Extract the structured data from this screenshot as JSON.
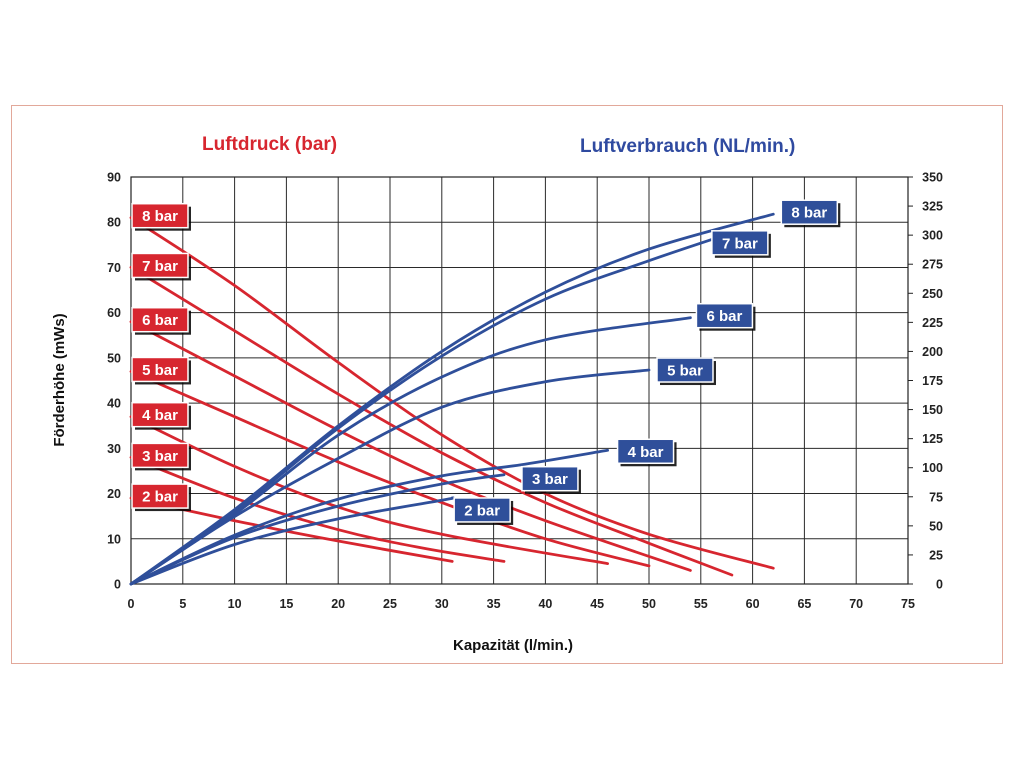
{
  "chart_data": {
    "type": "line",
    "title_left": "Luftdruck (bar)",
    "title_right": "Luftverbrauch (NL/min.)",
    "xlabel": "Kapazität (l/min.)",
    "ylabel": "Förderhöhe (mWs)",
    "y2label": "",
    "xlim": [
      0,
      75
    ],
    "ylim": [
      0,
      90
    ],
    "y2lim": [
      0,
      350
    ],
    "x_ticks": [
      0,
      5,
      10,
      15,
      20,
      25,
      30,
      35,
      40,
      45,
      50,
      55,
      60,
      65,
      70,
      75
    ],
    "y_ticks": [
      0,
      10,
      20,
      30,
      40,
      50,
      60,
      70,
      80,
      90
    ],
    "y2_ticks": [
      0,
      25,
      50,
      75,
      100,
      125,
      150,
      175,
      200,
      225,
      250,
      275,
      300,
      325,
      350
    ],
    "grid": true,
    "colors": {
      "pressure": "#d7262f",
      "consumption": "#2f4f9a"
    },
    "pressure_series": [
      {
        "name": "2 bar",
        "points": [
          [
            0,
            19
          ],
          [
            10,
            14
          ],
          [
            20,
            9.5
          ],
          [
            31,
            5
          ]
        ]
      },
      {
        "name": "3 bar",
        "points": [
          [
            0,
            28
          ],
          [
            10,
            19
          ],
          [
            20,
            12
          ],
          [
            28,
            8
          ],
          [
            36,
            5
          ]
        ]
      },
      {
        "name": "4 bar",
        "points": [
          [
            0,
            37
          ],
          [
            10,
            26
          ],
          [
            20,
            17
          ],
          [
            30,
            11
          ],
          [
            46,
            4.5
          ]
        ]
      },
      {
        "name": "5 bar",
        "points": [
          [
            0,
            47
          ],
          [
            10,
            37
          ],
          [
            20,
            27
          ],
          [
            30,
            18
          ],
          [
            40,
            10
          ],
          [
            50,
            4
          ]
        ]
      },
      {
        "name": "6 bar",
        "points": [
          [
            0,
            58
          ],
          [
            10,
            46
          ],
          [
            20,
            34
          ],
          [
            30,
            23
          ],
          [
            40,
            14
          ],
          [
            54,
            3
          ]
        ]
      },
      {
        "name": "7 bar",
        "points": [
          [
            0,
            70
          ],
          [
            10,
            56
          ],
          [
            20,
            42
          ],
          [
            30,
            29
          ],
          [
            40,
            18
          ],
          [
            50,
            9
          ],
          [
            58,
            2
          ]
        ]
      },
      {
        "name": "8 bar",
        "points": [
          [
            0,
            81
          ],
          [
            10,
            66
          ],
          [
            20,
            49
          ],
          [
            30,
            33
          ],
          [
            40,
            20
          ],
          [
            50,
            11
          ],
          [
            62,
            3.5
          ]
        ]
      }
    ],
    "consumption_series": [
      {
        "name": "2 bar",
        "points": [
          [
            0,
            0
          ],
          [
            10,
            34
          ],
          [
            20,
            56
          ],
          [
            30,
            72
          ],
          [
            31,
            74
          ]
        ]
      },
      {
        "name": "3 bar",
        "points": [
          [
            0,
            0
          ],
          [
            10,
            40
          ],
          [
            20,
            67
          ],
          [
            30,
            86
          ],
          [
            36,
            94
          ]
        ]
      },
      {
        "name": "4 bar",
        "points": [
          [
            0,
            0
          ],
          [
            10,
            42
          ],
          [
            20,
            73
          ],
          [
            30,
            93
          ],
          [
            38,
            103
          ],
          [
            46,
            115
          ]
        ]
      },
      {
        "name": "5 bar",
        "points": [
          [
            0,
            0
          ],
          [
            10,
            58
          ],
          [
            20,
            108
          ],
          [
            30,
            152
          ],
          [
            40,
            174
          ],
          [
            50,
            184
          ]
        ]
      },
      {
        "name": "6 bar",
        "points": [
          [
            0,
            0
          ],
          [
            10,
            60
          ],
          [
            20,
            128
          ],
          [
            30,
            178
          ],
          [
            40,
            210
          ],
          [
            54,
            229
          ]
        ]
      },
      {
        "name": "7 bar",
        "points": [
          [
            0,
            0
          ],
          [
            10,
            62
          ],
          [
            20,
            134
          ],
          [
            30,
            196
          ],
          [
            40,
            245
          ],
          [
            50,
            278
          ],
          [
            58,
            302
          ]
        ]
      },
      {
        "name": "8 bar",
        "points": [
          [
            0,
            0
          ],
          [
            10,
            64
          ],
          [
            20,
            136
          ],
          [
            30,
            200
          ],
          [
            40,
            251
          ],
          [
            50,
            288
          ],
          [
            62,
            318
          ]
        ]
      }
    ]
  }
}
